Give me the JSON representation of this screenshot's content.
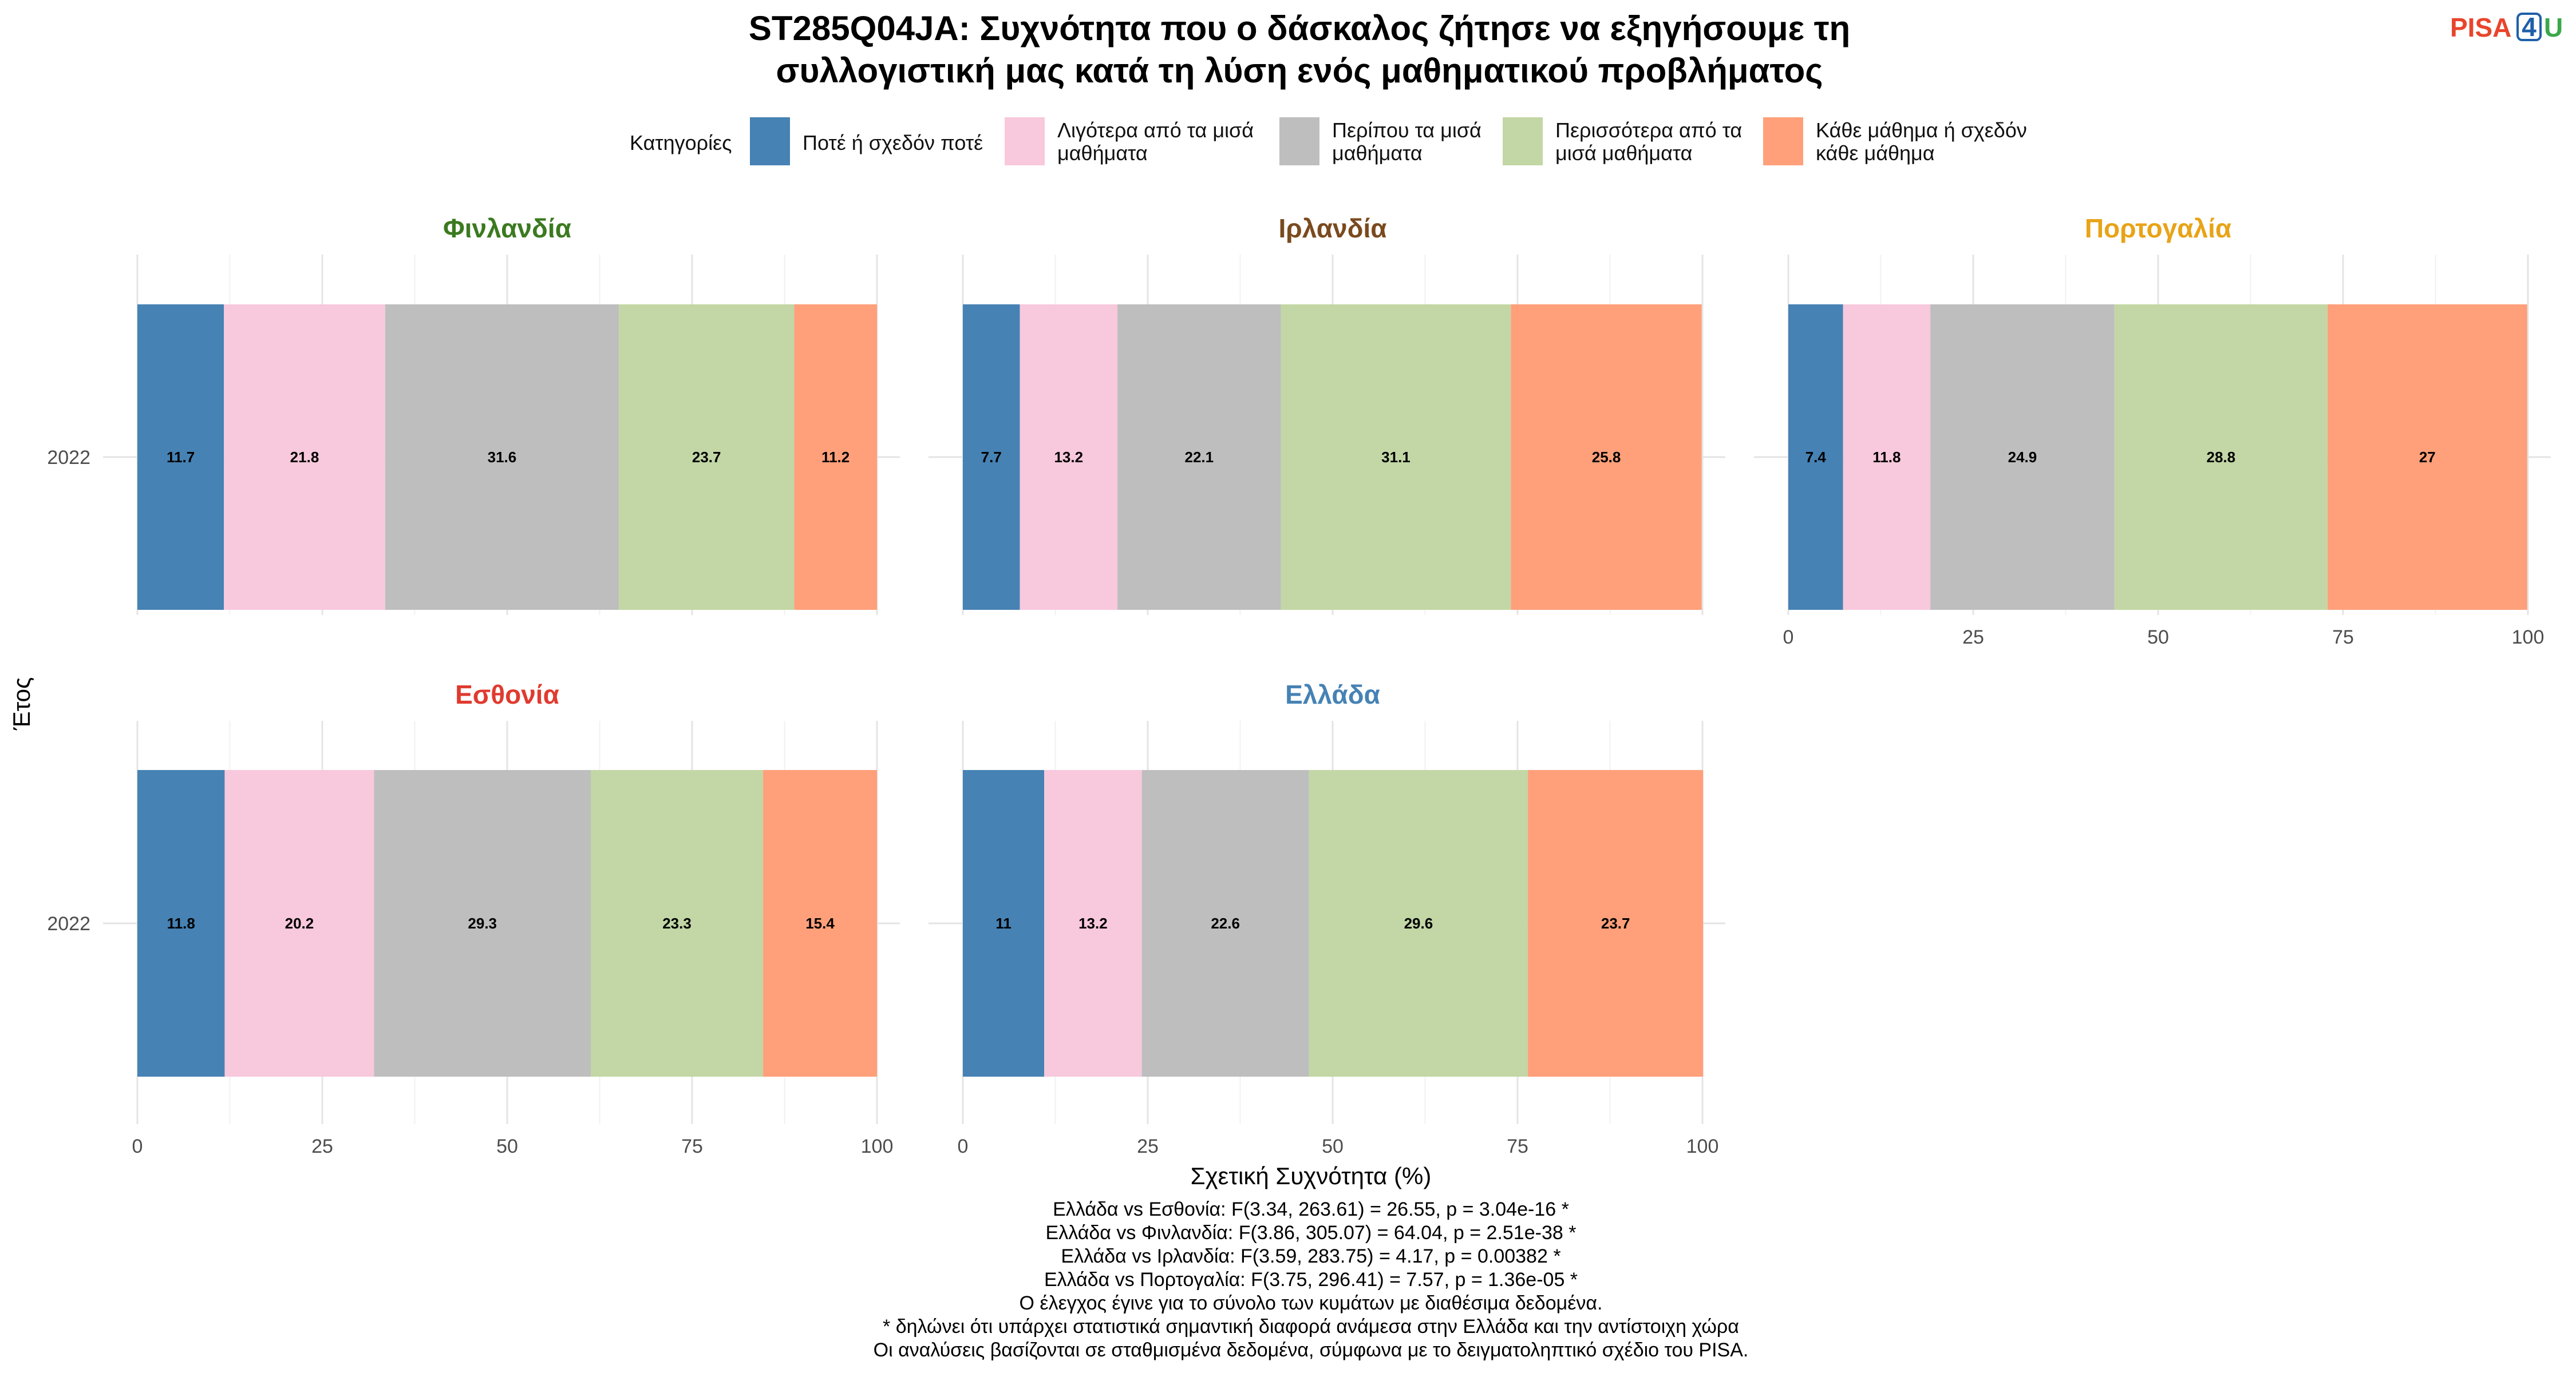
{
  "title_lines": [
    "ST285Q04JA: Συχνότητα που ο δάσκαλος ζήτησε να εξηγήσουμε τη",
    "συλλογιστική μας κατά τη λύση ενός μαθηματικού προβλήματος"
  ],
  "logo": {
    "text": "PISA",
    "digit": "4",
    "suffix": "U",
    "colors": {
      "text": "#e8452c",
      "digit": "#1f5fa8",
      "suffix": "#3aa84a"
    }
  },
  "legend": {
    "title": "Κατηγορίες",
    "items": [
      {
        "lines": [
          "Ποτέ ή σχεδόν ποτέ"
        ],
        "color": "#4682b4"
      },
      {
        "lines": [
          "Λιγότερα από τα μισά",
          "μαθήματα"
        ],
        "color": "#f8c8dc"
      },
      {
        "lines": [
          "Περίπου τα μισά",
          "μαθήματα"
        ],
        "color": "#bebebe"
      },
      {
        "lines": [
          "Περισσότερα από τα",
          "μισά μαθήματα"
        ],
        "color": "#c2d7a5"
      },
      {
        "lines": [
          "Κάθε μάθημα ή σχεδόν",
          "κάθε μάθημα"
        ],
        "color": "#ffa07a"
      }
    ]
  },
  "chart_data": {
    "type": "bar",
    "orientation": "horizontal",
    "stacked": true,
    "x_label": "Σχετική Συχνότητα (%)",
    "y_label": "Έτος",
    "xlim": [
      0,
      100
    ],
    "x_ticks": [
      "0",
      "25",
      "50",
      "75",
      "100"
    ],
    "grid": true,
    "legend_position": "top",
    "categories": [
      "Ποτέ ή σχεδόν ποτέ",
      "Λιγότερα από τα μισά μαθήματα",
      "Περίπου τα μισά μαθήματα",
      "Περισσότερα από τα μισά μαθήματα",
      "Κάθε μάθημα ή σχεδόν κάθε μάθημα"
    ],
    "facets": [
      {
        "country": "Φινλανδία",
        "color": "#3b7a1f",
        "year": "2022",
        "values": [
          11.7,
          21.8,
          31.6,
          23.7,
          11.2
        ],
        "labels": [
          "11.7",
          "21.8",
          "31.6",
          "23.7",
          "11.2"
        ]
      },
      {
        "country": "Ιρλανδία",
        "color": "#7a4a1e",
        "year": "2022",
        "values": [
          7.7,
          13.2,
          22.1,
          31.1,
          25.8
        ],
        "labels": [
          "7.7",
          "13.2",
          "22.1",
          "31.1",
          "25.8"
        ]
      },
      {
        "country": "Πορτογαλία",
        "color": "#e8a317",
        "year": "2022",
        "values": [
          7.4,
          11.8,
          24.9,
          28.8,
          27.0
        ],
        "labels": [
          "7.4",
          "11.8",
          "24.9",
          "28.8",
          "27"
        ]
      },
      {
        "country": "Εσθονία",
        "color": "#e03a2f",
        "year": "2022",
        "values": [
          11.8,
          20.2,
          29.3,
          23.3,
          15.4
        ],
        "labels": [
          "11.8",
          "20.2",
          "29.3",
          "23.3",
          "15.4"
        ]
      },
      {
        "country": "Ελλάδα",
        "color": "#4682b4",
        "year": "2022",
        "values": [
          11.0,
          13.2,
          22.6,
          29.6,
          23.7
        ],
        "labels": [
          "11",
          "13.2",
          "22.6",
          "29.6",
          "23.7"
        ]
      }
    ]
  },
  "caption_lines": [
    "Ελλάδα vs Εσθονία: F(3.34, 263.61) = 26.55, p = 3.04e-16 *",
    "Ελλάδα vs Φινλανδία: F(3.86, 305.07) = 64.04, p = 2.51e-38 *",
    "Ελλάδα vs Ιρλανδία: F(3.59, 283.75) = 4.17, p = 0.00382 *",
    "Ελλάδα vs Πορτογαλία: F(3.75, 296.41) = 7.57, p = 1.36e-05 *",
    "Ο έλεγχος έγινε για το σύνολο των κυμάτων με διαθέσιμα δεδομένα.",
    "* δηλώνει ότι υπάρχει στατιστικά σημαντική διαφορά ανάμεσα στην Ελλάδα και την αντίστοιχη χώρα",
    "Οι αναλύσεις βασίζονται σε σταθμισμένα δεδομένα, σύμφωνα με το δειγματοληπτικό σχέδιο του PISA."
  ]
}
